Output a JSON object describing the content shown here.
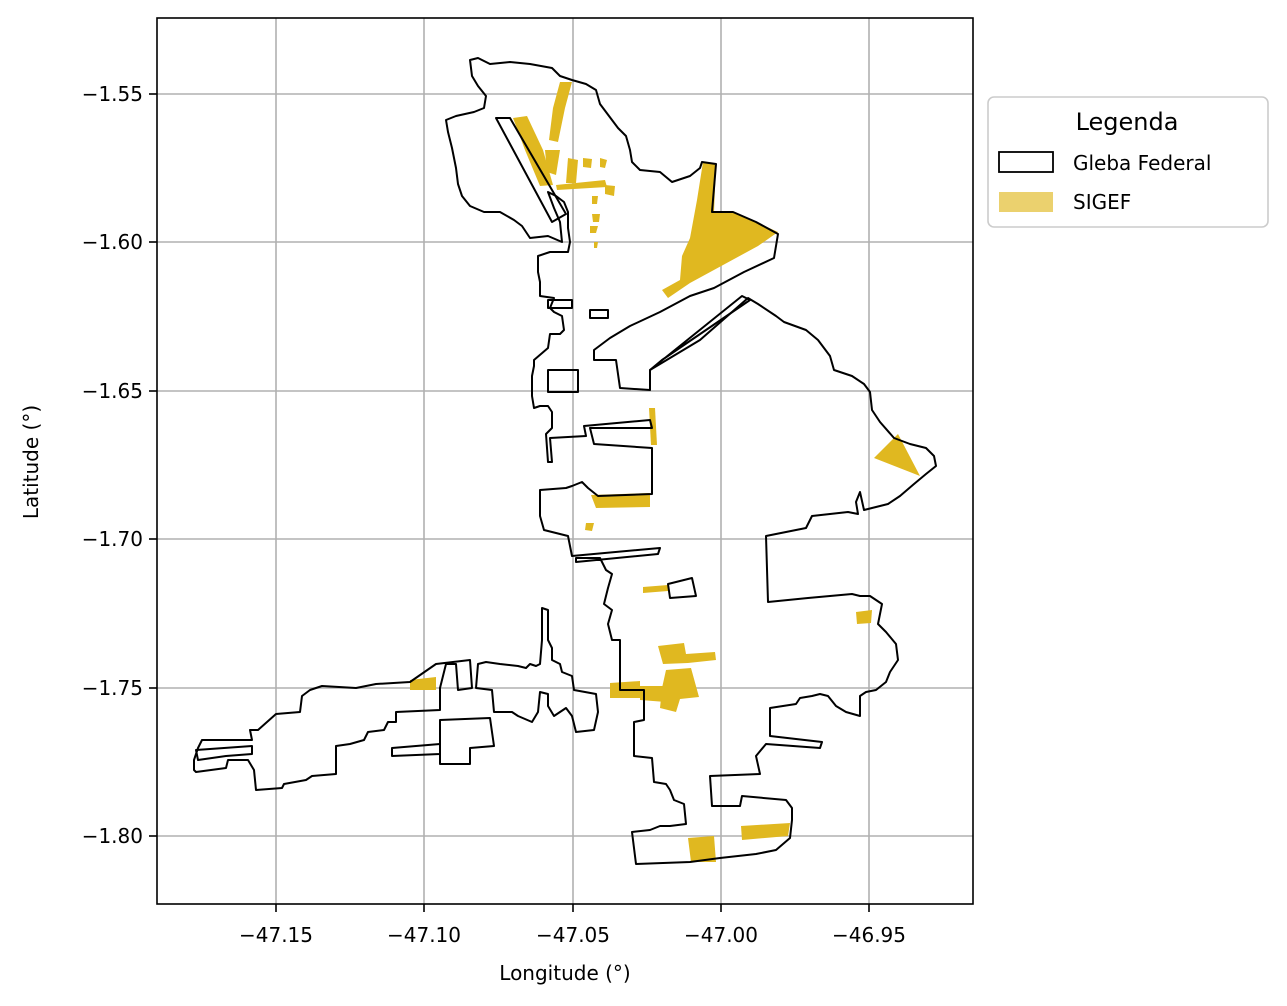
{
  "map": {
    "xlabel": "Longitude (°)",
    "ylabel": "Latitude (°)",
    "xlim": [
      -47.19,
      -46.915
    ],
    "ylim": [
      -1.8235,
      -1.5245
    ],
    "xticks": [
      -47.15,
      -47.1,
      -47.05,
      -47.0,
      -46.95
    ],
    "xtick_labels": [
      "−47.15",
      "−47.10",
      "−47.05",
      "−47.00",
      "−46.95"
    ],
    "yticks": [
      -1.55,
      -1.6,
      -1.65,
      -1.7,
      -1.75,
      -1.8
    ],
    "ytick_labels": [
      "−1.55",
      "−1.60",
      "−1.65",
      "−1.70",
      "−1.75",
      "−1.80"
    ],
    "grid": true,
    "legend": {
      "title": "Legenda",
      "placement": "outside-right-top",
      "items": [
        {
          "label": "Gleba Federal",
          "style": "outline",
          "color": "#000000"
        },
        {
          "label": "SIGEF",
          "style": "fill",
          "color": "#E0B820"
        }
      ]
    },
    "colors": {
      "gleba_outline": "#000000",
      "sigef_fill": "#E0B820",
      "grid": "#b0b0b0"
    }
  }
}
